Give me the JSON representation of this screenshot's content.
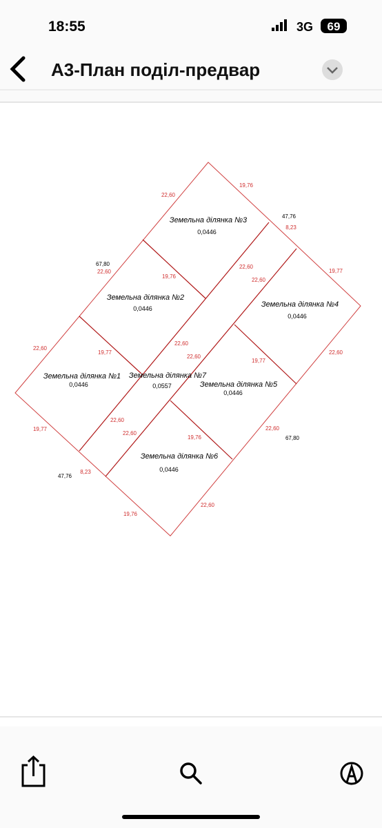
{
  "status_bar": {
    "time": "18:55",
    "network": "3G",
    "battery": "69"
  },
  "header": {
    "title": "А3-План поділ-предвар"
  },
  "plan": {
    "plots": [
      {
        "name": "Земельна ділянка №3",
        "area": "0,0446"
      },
      {
        "name": "Земельна ділянка №2",
        "area": "0,0446"
      },
      {
        "name": "Земельна ділянка №4",
        "area": "0,0446"
      },
      {
        "name": "Земельна ділянка №1",
        "area": "0,0446"
      },
      {
        "name": "Земельна ділянка №7",
        "area": "0,0557"
      },
      {
        "name": "Земельна ділянка №5",
        "area": "0,0446"
      },
      {
        "name": "Земельна ділянка №6",
        "area": "0,0446"
      }
    ],
    "dimensions": [
      "22,60",
      "19,76",
      "8,23",
      "22,60",
      "19,76",
      "22,60",
      "22,60",
      "19,77",
      "22,60",
      "19,77",
      "22,60",
      "22,60",
      "19,77",
      "22,60",
      "19,77",
      "22,60",
      "22,60",
      "19,76",
      "22,60",
      "8,23",
      "19,76",
      "22,60"
    ],
    "outer_dimensions": [
      "47,76",
      "67,80",
      "67,80",
      "47,76"
    ]
  }
}
